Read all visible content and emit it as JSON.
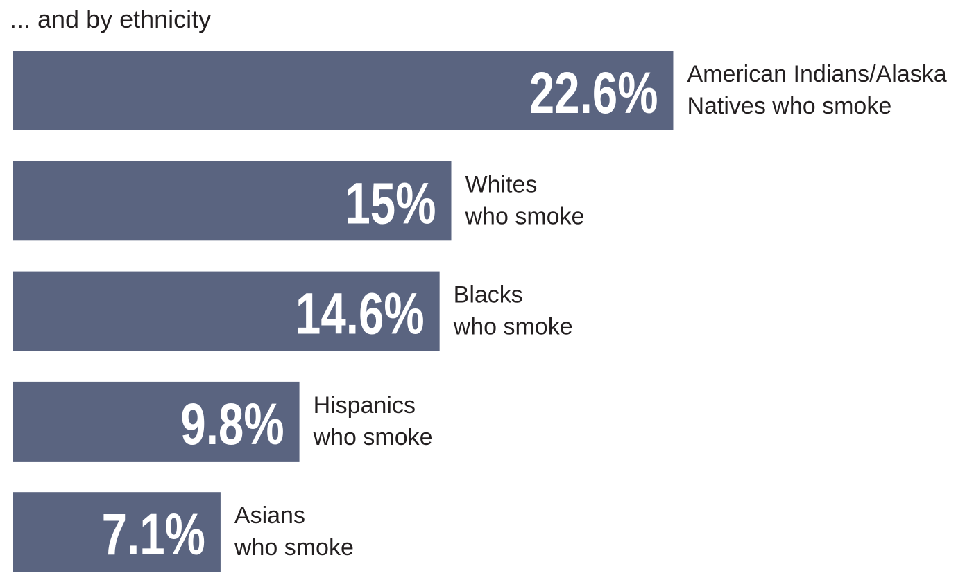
{
  "chart_data": {
    "type": "bar",
    "orientation": "horizontal",
    "title": "... and by ethnicity",
    "categories": [
      "American Indians/Alaska Natives who smoke",
      "Whites who smoke",
      "Blacks who smoke",
      "Hispanics who smoke",
      "Asians who smoke"
    ],
    "label_lines": [
      [
        "American Indians/Alaska",
        "Natives who smoke"
      ],
      [
        "Whites",
        "who smoke"
      ],
      [
        "Blacks",
        "who smoke"
      ],
      [
        "Hispanics",
        "who smoke"
      ],
      [
        "Asians",
        "who smoke"
      ]
    ],
    "values": [
      22.6,
      15,
      14.6,
      9.8,
      7.1
    ],
    "value_labels": [
      "22.6%",
      "15%",
      "14.6%",
      "9.8%",
      "7.1%"
    ],
    "unit": "%",
    "grid": false,
    "axes_visible": false,
    "legend": "none",
    "colors": {
      "bar": "#5a6480",
      "value_text": "#ffffff",
      "label_text": "#231f20"
    }
  }
}
